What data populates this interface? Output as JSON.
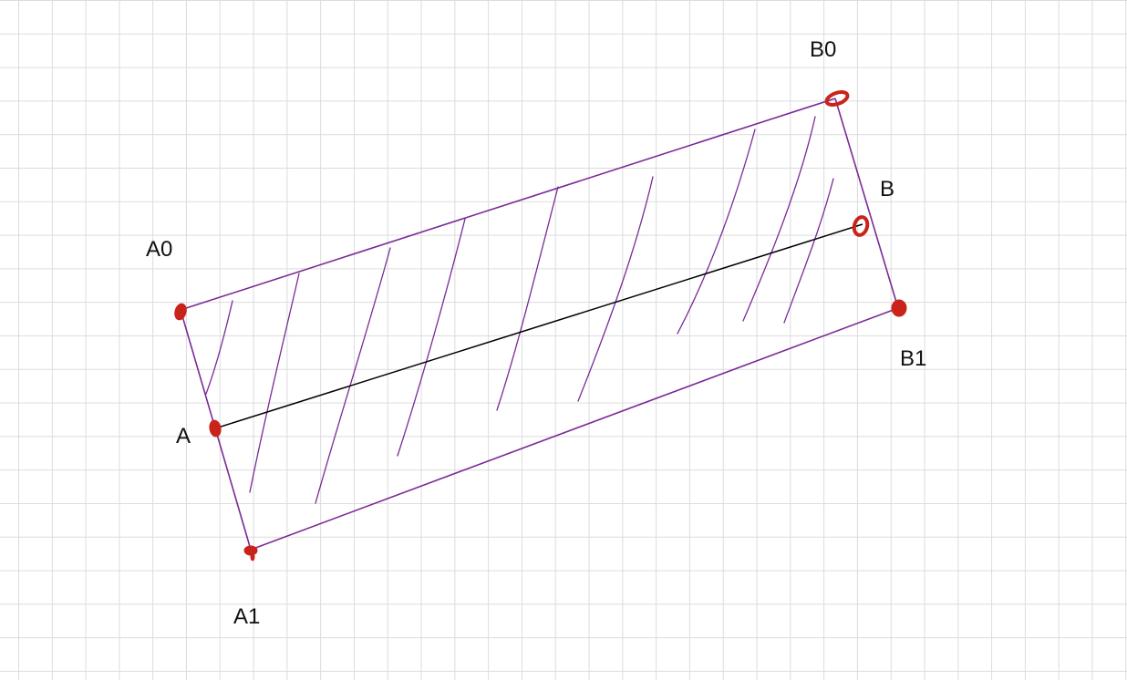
{
  "points": {
    "a0": {
      "label": "A0"
    },
    "a": {
      "label": "A"
    },
    "a1": {
      "label": "A1"
    },
    "b0": {
      "label": "B0"
    },
    "b": {
      "label": "B"
    },
    "b1": {
      "label": "B1"
    }
  },
  "colors": {
    "outline": "#7a2a96",
    "hatch": "#7a2a96",
    "segment": "#000000",
    "point_marker": "#c8241b",
    "grid": "#dcdcdc",
    "background": "#ffffff",
    "label_text": "#111111"
  }
}
